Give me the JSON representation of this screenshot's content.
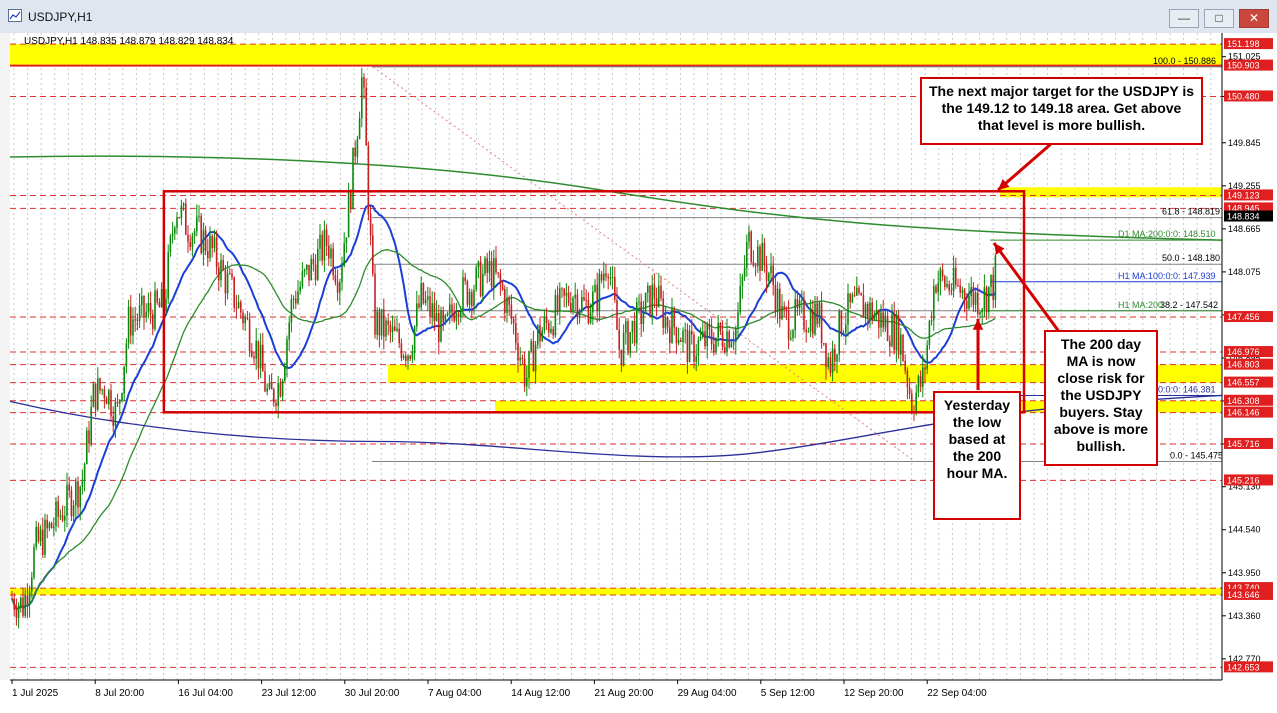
{
  "window": {
    "title": "USDJPY,H1",
    "minimize_label": "—",
    "maximize_label": "□",
    "close_label": "✕"
  },
  "chart_info": "USDJPY,H1  148.835 148.879 148.829 148.834",
  "annotations": {
    "target": "The next major target for the USDJPY is the 149.12 to 149.18 area. Get above that level is more bullish.",
    "ma200day": "The 200 day MA is now close risk for the USDJPY buyers.   Stay above is more bullish.",
    "yesterday": "Yesterday the low based at the 200 hour MA."
  },
  "colors": {
    "candle_up": "#0a8a0a",
    "candle_down": "#c62020",
    "ma_blue": "#1a3fd6",
    "ma_green": "#2e8b2e",
    "ma_navy": "#2a2f9a",
    "highlight": "#ffff00",
    "annotation": "#d40000",
    "price_tag": "#e02020"
  },
  "chart_data": {
    "type": "candlestick",
    "symbol": "USDJPY",
    "timeframe": "H1",
    "ylim": [
      142.48,
      151.35
    ],
    "x_range_days": [
      "2025-07-01",
      "2025-09-24"
    ],
    "price_axis_ticks": [
      151.025,
      150.48,
      149.845,
      149.255,
      148.665,
      148.075,
      147.485,
      146.895,
      146.305,
      145.715,
      145.13,
      144.54,
      143.95,
      143.36,
      142.77
    ],
    "time_axis_labels": [
      "1 Jul 2025",
      "8 Jul 20:00",
      "16 Jul 04:00",
      "23 Jul 12:00",
      "30 Jul 20:00",
      "7 Aug 04:00",
      "14 Aug 12:00",
      "21 Aug 20:00",
      "29 Aug 04:00",
      "5 Sep 12:00",
      "12 Sep 20:00",
      "22 Sep 04:00"
    ],
    "price_tags": [
      {
        "value": 151.198,
        "label": "151.198",
        "style": "red"
      },
      {
        "value": 150.903,
        "label": "150.903",
        "style": "red"
      },
      {
        "value": 150.48,
        "label": "150.480",
        "style": "red"
      },
      {
        "value": 149.123,
        "label": "149.123",
        "style": "red"
      },
      {
        "value": 148.945,
        "label": "148.945",
        "style": "red"
      },
      {
        "value": 148.834,
        "label": "148.834",
        "style": "black"
      },
      {
        "value": 147.456,
        "label": "147.456",
        "style": "red"
      },
      {
        "value": 146.976,
        "label": "146.976",
        "style": "red"
      },
      {
        "value": 146.803,
        "label": "146.803",
        "style": "red"
      },
      {
        "value": 146.557,
        "label": "146.557",
        "style": "red"
      },
      {
        "value": 146.308,
        "label": "146.308",
        "style": "red"
      },
      {
        "value": 146.146,
        "label": "146.146",
        "style": "red"
      },
      {
        "value": 145.716,
        "label": "145.716",
        "style": "red"
      },
      {
        "value": 145.216,
        "label": "145.216",
        "style": "red"
      },
      {
        "value": 143.74,
        "label": "143.740",
        "style": "red"
      },
      {
        "value": 143.646,
        "label": "143.646",
        "style": "red"
      },
      {
        "value": 142.653,
        "label": "142.653",
        "style": "red"
      }
    ],
    "fibonacci": [
      {
        "level": "100.0",
        "value": 150.886,
        "label": "100.0 - 150.886"
      },
      {
        "level": "61.8",
        "value": 148.819,
        "label": "61.8 - 148.819"
      },
      {
        "level": "50.0",
        "value": 148.18,
        "label": "50.0 - 148.180"
      },
      {
        "level": "38.2",
        "value": 147.542,
        "label": "38.2 - 147.542"
      },
      {
        "level": "0.0",
        "value": 145.475,
        "label": "0.0 - 145.475"
      }
    ],
    "moving_averages": [
      {
        "name": "D1 MA:200:0:0",
        "value": 148.51,
        "label": "D1 MA:200:0:0: 148.510"
      },
      {
        "name": "H1 MA:100:0:0",
        "value": 147.939,
        "label": "H1 MA:100:0:0: 147.939"
      },
      {
        "name": "H1 MA:200",
        "value": 147.542,
        "label": "H1 MA:200"
      },
      {
        "name": "MA 0:0:0",
        "value": 146.381,
        "label": "0:0:0: 146.381"
      }
    ],
    "zones": [
      {
        "name": "target-zone",
        "from": 149.12,
        "to": 149.18
      },
      {
        "name": "support-zone-1",
        "from": 146.557,
        "to": 146.803
      },
      {
        "name": "support-zone-2",
        "from": 146.146,
        "to": 146.308
      },
      {
        "name": "top-zone",
        "from": 150.903,
        "to": 151.198
      },
      {
        "name": "bottom-zone",
        "from": 143.646,
        "to": 143.74
      }
    ],
    "range_box": {
      "from_date": "2025-07-14",
      "to_date": "2025-09-23",
      "high": 149.18,
      "low": 146.15
    },
    "price_path": [
      [
        "2025-07-01",
        143.6
      ],
      [
        "2025-07-02",
        143.5
      ],
      [
        "2025-07-03",
        144.3
      ],
      [
        "2025-07-04",
        144.5
      ],
      [
        "2025-07-07",
        145.2
      ],
      [
        "2025-07-08",
        146.4
      ],
      [
        "2025-07-09",
        146.5
      ],
      [
        "2025-07-10",
        146.1
      ],
      [
        "2025-07-11",
        147.4
      ],
      [
        "2025-07-14",
        147.6
      ],
      [
        "2025-07-15",
        149.0
      ],
      [
        "2025-07-16",
        148.7
      ],
      [
        "2025-07-17",
        148.6
      ],
      [
        "2025-07-18",
        148.4
      ],
      [
        "2025-07-21",
        147.4
      ],
      [
        "2025-07-22",
        147.0
      ],
      [
        "2025-07-23",
        146.3
      ],
      [
        "2025-07-24",
        146.6
      ],
      [
        "2025-07-25",
        147.7
      ],
      [
        "2025-07-28",
        148.5
      ],
      [
        "2025-07-29",
        148.0
      ],
      [
        "2025-07-30",
        149.2
      ],
      [
        "2025-07-31",
        150.8
      ],
      [
        "2025-08-01",
        147.4
      ],
      [
        "2025-08-04",
        147.0
      ],
      [
        "2025-08-05",
        147.7
      ],
      [
        "2025-08-06",
        147.5
      ],
      [
        "2025-08-07",
        147.2
      ],
      [
        "2025-08-08",
        147.7
      ],
      [
        "2025-08-11",
        148.1
      ],
      [
        "2025-08-12",
        147.8
      ],
      [
        "2025-08-13",
        147.3
      ],
      [
        "2025-08-14",
        146.6
      ],
      [
        "2025-08-15",
        147.2
      ],
      [
        "2025-08-18",
        147.8
      ],
      [
        "2025-08-19",
        147.6
      ],
      [
        "2025-08-20",
        147.7
      ],
      [
        "2025-08-21",
        148.3
      ],
      [
        "2025-08-22",
        147.0
      ],
      [
        "2025-08-25",
        147.8
      ],
      [
        "2025-08-26",
        147.4
      ],
      [
        "2025-08-27",
        147.3
      ],
      [
        "2025-08-28",
        147.0
      ],
      [
        "2025-08-29",
        147.1
      ],
      [
        "2025-09-01",
        147.3
      ],
      [
        "2025-09-02",
        148.5
      ],
      [
        "2025-09-03",
        148.3
      ],
      [
        "2025-09-04",
        148.0
      ],
      [
        "2025-09-05",
        147.4
      ],
      [
        "2025-09-08",
        147.5
      ],
      [
        "2025-09-09",
        146.8
      ],
      [
        "2025-09-10",
        147.4
      ],
      [
        "2025-09-11",
        147.6
      ],
      [
        "2025-09-12",
        147.6
      ],
      [
        "2025-09-15",
        147.2
      ],
      [
        "2025-09-16",
        146.3
      ],
      [
        "2025-09-17",
        146.6
      ],
      [
        "2025-09-18",
        148.0
      ],
      [
        "2025-09-19",
        147.9
      ],
      [
        "2025-09-22",
        147.7
      ],
      [
        "2025-09-23",
        147.9
      ],
      [
        "2025-09-24",
        148.83
      ]
    ]
  }
}
